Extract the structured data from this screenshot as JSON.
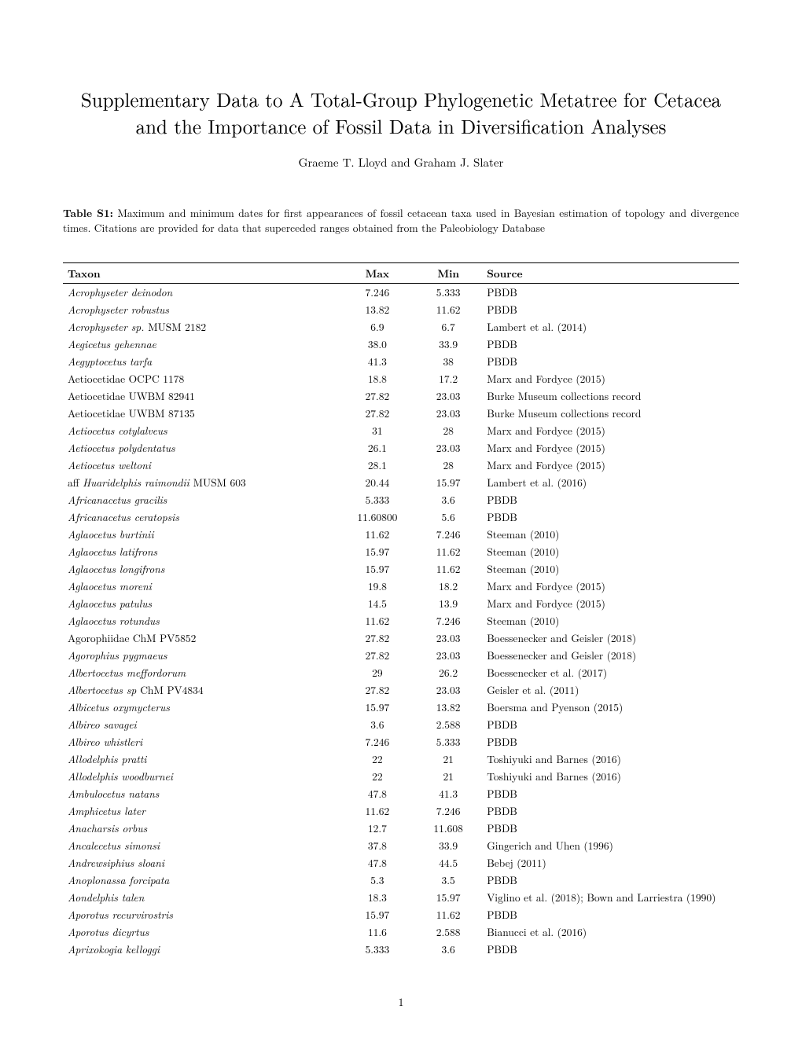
{
  "title": "Supplementary Data to A Total-Group Phylogenetic Metatree for Cetacea and the Importance of Fossil Data in Diversification Analyses",
  "authors": "Graeme T. Lloyd and Graham J. Slater",
  "caption_label": "Table S1:",
  "caption_text": " Maximum and minimum dates for first appearances of fossil cetacean taxa used in Bayesian estimation of topology and divergence times. Citations are provided for data that superceded ranges obtained from the Paleobiology Database",
  "columns": [
    "Taxon",
    "Max",
    "Min",
    "Source"
  ],
  "rows": [
    {
      "taxon_html": "<i>Acrophyseter deinodon</i>",
      "max": "7.246",
      "min": "5.333",
      "source": "PBDB"
    },
    {
      "taxon_html": "<i>Acrophyseter robustus</i>",
      "max": "13.82",
      "min": "11.62",
      "source": "PBDB"
    },
    {
      "taxon_html": "<i>Acrophyseter sp.</i> <span class=\"roman\">MUSM 2182</span>",
      "max": "6.9",
      "min": "6.7",
      "source": "Lambert et al. (2014)"
    },
    {
      "taxon_html": "<i>Aegicetus gehennae</i>",
      "max": "38.0",
      "min": "33.9",
      "source": "PBDB"
    },
    {
      "taxon_html": "<i>Aegyptocetus tarfa</i>",
      "max": "41.3",
      "min": "38",
      "source": "PBDB"
    },
    {
      "taxon_html": "<span class=\"roman\">Aetiocetidae OCPC 1178</span>",
      "max": "18.8",
      "min": "17.2",
      "source": "Marx and Fordyce (2015)"
    },
    {
      "taxon_html": "<span class=\"roman\">Aetiocetidae UWBM 82941</span>",
      "max": "27.82",
      "min": "23.03",
      "source": "Burke Museum collections record"
    },
    {
      "taxon_html": "<span class=\"roman\">Aetiocetidae UWBM 87135</span>",
      "max": "27.82",
      "min": "23.03",
      "source": "Burke Museum collections record"
    },
    {
      "taxon_html": "<i>Aetiocetus cotylalveus</i>",
      "max": "31",
      "min": "28",
      "source": "Marx and Fordyce (2015)"
    },
    {
      "taxon_html": "<i>Aetiocetus polydentatus</i>",
      "max": "26.1",
      "min": "23.03",
      "source": "Marx and Fordyce (2015)"
    },
    {
      "taxon_html": "<i>Aetiocetus weltoni</i>",
      "max": "28.1",
      "min": "28",
      "source": "Marx and Fordyce (2015)"
    },
    {
      "taxon_html": "<span class=\"roman\">aff </span><i>Huaridelphis raimondii</i> <span class=\"roman\">MUSM 603</span>",
      "max": "20.44",
      "min": "15.97",
      "source": "Lambert et al. (2016)"
    },
    {
      "taxon_html": "<i>Africanacetus gracilis</i>",
      "max": "5.333",
      "min": "3.6",
      "source": "PBDB"
    },
    {
      "taxon_html": "<i>Africanacetus ceratopsis</i>",
      "max": "11.60800",
      "min": "5.6",
      "source": "PBDB"
    },
    {
      "taxon_html": "<i>Aglaocetus burtinii</i>",
      "max": "11.62",
      "min": "7.246",
      "source": "Steeman (2010)"
    },
    {
      "taxon_html": "<i>Aglaocetus latifrons</i>",
      "max": "15.97",
      "min": "11.62",
      "source": "Steeman (2010)"
    },
    {
      "taxon_html": "<i>Aglaocetus longifrons</i>",
      "max": "15.97",
      "min": "11.62",
      "source": "Steeman (2010)"
    },
    {
      "taxon_html": "<i>Aglaocetus moreni</i>",
      "max": "19.8",
      "min": "18.2",
      "source": "Marx and Fordyce (2015)"
    },
    {
      "taxon_html": "<i>Aglaocetus patulus</i>",
      "max": "14.5",
      "min": "13.9",
      "source": "Marx and Fordyce (2015)"
    },
    {
      "taxon_html": "<i>Aglaocetus rotundus</i>",
      "max": "11.62",
      "min": "7.246",
      "source": "Steeman (2010)"
    },
    {
      "taxon_html": "<span class=\"roman\">Agorophiidae ChM PV5852</span>",
      "max": "27.82",
      "min": "23.03",
      "source": "Boessenecker and Geisler (2018)"
    },
    {
      "taxon_html": "<i>Agorophius pygmaeus</i>",
      "max": "27.82",
      "min": "23.03",
      "source": "Boessenecker and Geisler (2018)"
    },
    {
      "taxon_html": "<i>Albertocetus meffordorum</i>",
      "max": "29",
      "min": "26.2",
      "source": "Boessenecker et al. (2017)"
    },
    {
      "taxon_html": "<i>Albertocetus sp</i> <span class=\"roman\">ChM PV4834</span>",
      "max": "27.82",
      "min": "23.03",
      "source": "Geisler et al. (2011)"
    },
    {
      "taxon_html": "<i>Albicetus oxymycterus</i>",
      "max": "15.97",
      "min": "13.82",
      "source": "Boersma and Pyenson (2015)"
    },
    {
      "taxon_html": "<i>Albireo savagei</i>",
      "max": "3.6",
      "min": "2.588",
      "source": "PBDB"
    },
    {
      "taxon_html": "<i>Albireo whistleri</i>",
      "max": "7.246",
      "min": "5.333",
      "source": "PBDB"
    },
    {
      "taxon_html": "<i>Allodelphis pratti</i>",
      "max": "22",
      "min": "21",
      "source": "Toshiyuki and Barnes (2016)"
    },
    {
      "taxon_html": "<i>Allodelphis woodburnei</i>",
      "max": "22",
      "min": "21",
      "source": "Toshiyuki and Barnes (2016)"
    },
    {
      "taxon_html": "<i>Ambulocetus natans</i>",
      "max": "47.8",
      "min": "41.3",
      "source": "PBDB"
    },
    {
      "taxon_html": "<i>Amphicetus later</i>",
      "max": "11.62",
      "min": "7.246",
      "source": "PBDB"
    },
    {
      "taxon_html": "<i>Anacharsis orbus</i>",
      "max": "12.7",
      "min": "11.608",
      "source": "PBDB"
    },
    {
      "taxon_html": "<i>Ancalecetus simonsi</i>",
      "max": "37.8",
      "min": "33.9",
      "source": "Gingerich and Uhen (1996)"
    },
    {
      "taxon_html": "<i>Andrewsiphius sloani</i>",
      "max": "47.8",
      "min": "44.5",
      "source": "Bebej (2011)"
    },
    {
      "taxon_html": "<i>Anoplonassa forcipata</i>",
      "max": "5.3",
      "min": "3.5",
      "source": "PBDB"
    },
    {
      "taxon_html": "<i>Aondelphis talen</i>",
      "max": "18.3",
      "min": "15.97",
      "source": "Viglino et al. (2018); Bown and Larriestra (1990)"
    },
    {
      "taxon_html": "<i>Aporotus recurvirostris</i>",
      "max": "15.97",
      "min": "11.62",
      "source": "PBDB"
    },
    {
      "taxon_html": "<i>Aporotus dicyrtus</i>",
      "max": "11.6",
      "min": "2.588",
      "source": "Bianucci et al. (2016)"
    },
    {
      "taxon_html": "<i>Aprixokogia kelloggi</i>",
      "max": "5.333",
      "min": "3.6",
      "source": "PBDB"
    }
  ],
  "page_number": "1"
}
